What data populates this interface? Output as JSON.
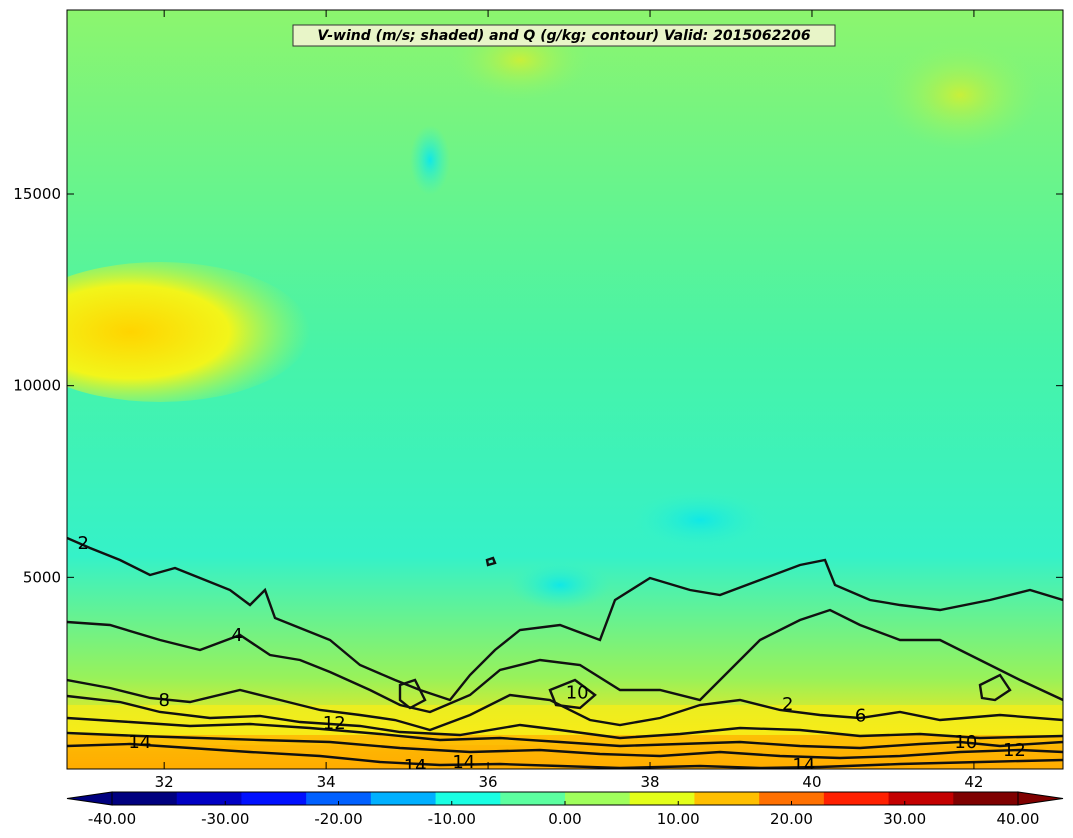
{
  "chart_data": {
    "type": "heatmap",
    "title": "V-wind (m/s; shaded) and Q (g/kg; contour) Valid: 2015062206",
    "xlabel": "",
    "ylabel": "",
    "xlim": [
      30.8,
      43.1
    ],
    "ylim": [
      0,
      19800
    ],
    "x_ticks": [
      32,
      34,
      36,
      38,
      40,
      42
    ],
    "y_ticks": [
      5000,
      10000,
      15000
    ],
    "colorbar": {
      "range": [
        -40,
        40
      ],
      "ticks": [
        "-40.00",
        "-30.00",
        "-20.00",
        "-10.00",
        "0.00",
        "10.00",
        "20.00",
        "30.00",
        "40.00"
      ],
      "extend": "both",
      "colormap": [
        "#00007f",
        "#0000c4",
        "#0010ff",
        "#0060ff",
        "#00b0ff",
        "#1affe3",
        "#5cffa0",
        "#a0ff5c",
        "#e3ff1a",
        "#ffbf00",
        "#ff7000",
        "#ff2000",
        "#c40000",
        "#7f0000"
      ]
    },
    "shaded_field_v_wind": [
      {
        "region": "upper-left band",
        "x": [
          30.8,
          33.0
        ],
        "y": [
          10200,
          12400
        ],
        "value": 12
      },
      {
        "region": "near-surface band",
        "x": [
          30.8,
          43.1
        ],
        "y": [
          0,
          1000
        ],
        "value": 15
      },
      {
        "region": "mid-level minimum",
        "x": [
          36.5,
          38.5
        ],
        "y": [
          4500,
          6500
        ],
        "value": -8
      },
      {
        "region": "background",
        "value": -2
      }
    ],
    "contour_field_q": {
      "levels": [
        2,
        4,
        6,
        8,
        10,
        12,
        14
      ],
      "labels": [
        {
          "text": "2",
          "x": 31.0,
          "y": 5900
        },
        {
          "text": "4",
          "x": 32.9,
          "y": 3500
        },
        {
          "text": "8",
          "x": 32.0,
          "y": 1800
        },
        {
          "text": "12",
          "x": 34.1,
          "y": 1200
        },
        {
          "text": "14",
          "x": 31.7,
          "y": 700
        },
        {
          "text": "14",
          "x": 35.1,
          "y": 80
        },
        {
          "text": "14",
          "x": 35.7,
          "y": 180
        },
        {
          "text": "10",
          "x": 37.1,
          "y": 2000
        },
        {
          "text": "2",
          "x": 39.7,
          "y": 1700
        },
        {
          "text": "6",
          "x": 40.6,
          "y": 1400
        },
        {
          "text": "14",
          "x": 39.9,
          "y": 100
        },
        {
          "text": "10",
          "x": 41.9,
          "y": 700
        },
        {
          "text": "12",
          "x": 42.5,
          "y": 500
        }
      ]
    }
  }
}
